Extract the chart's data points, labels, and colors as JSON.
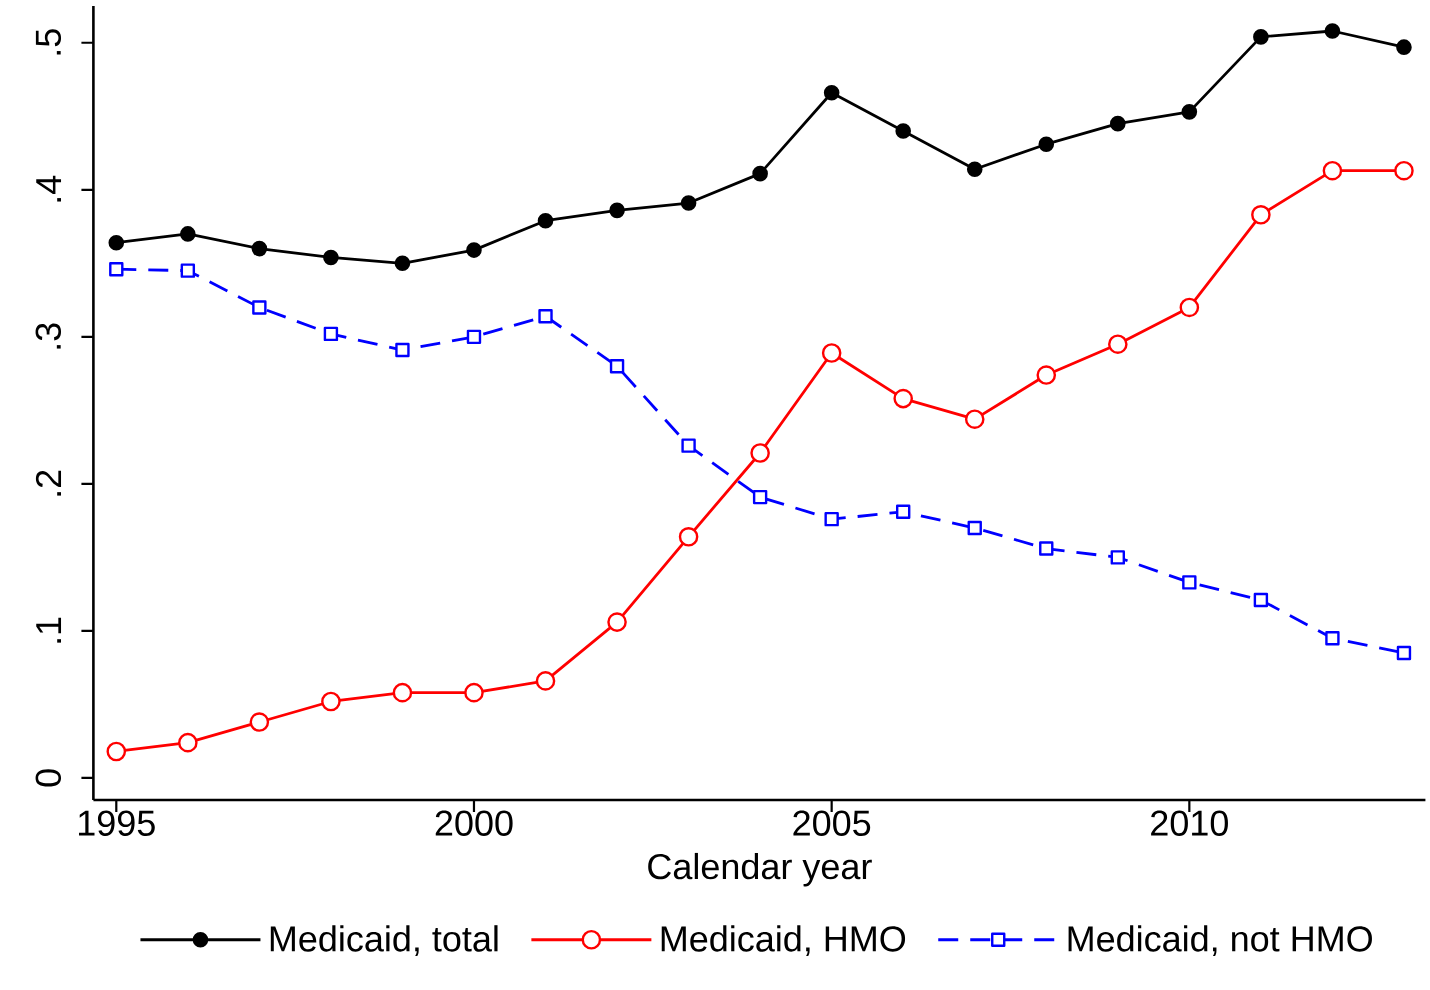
{
  "chart_data": {
    "type": "line",
    "xlabel": "Calendar year",
    "x": [
      1995,
      1996,
      1997,
      1998,
      1999,
      2000,
      2001,
      2002,
      2003,
      2004,
      2005,
      2006,
      2007,
      2008,
      2009,
      2010,
      2011,
      2012,
      2013
    ],
    "series": [
      {
        "name": "Medicaid, total",
        "color": "#000000",
        "marker": "circle",
        "line_style": "solid",
        "values": [
          0.364,
          0.37,
          0.36,
          0.354,
          0.35,
          0.359,
          0.379,
          0.386,
          0.391,
          0.411,
          0.466,
          0.44,
          0.414,
          0.431,
          0.445,
          0.453,
          0.504,
          0.508,
          0.497
        ]
      },
      {
        "name": "Medicaid, HMO",
        "color": "#ff0000",
        "marker": "circle",
        "line_style": "solid",
        "values": [
          0.018,
          0.024,
          0.038,
          0.052,
          0.058,
          0.058,
          0.066,
          0.106,
          0.164,
          0.221,
          0.289,
          0.258,
          0.244,
          0.274,
          0.295,
          0.32,
          0.383,
          0.413,
          0.413
        ]
      },
      {
        "name": "Medicaid, not HMO",
        "color": "#0000ff",
        "marker": "square",
        "line_style": "dashed",
        "values": [
          0.346,
          0.345,
          0.32,
          0.302,
          0.291,
          0.3,
          0.314,
          0.28,
          0.226,
          0.191,
          0.176,
          0.181,
          0.17,
          0.156,
          0.15,
          0.133,
          0.121,
          0.095,
          0.085
        ]
      }
    ],
    "xlim": [
      1994.68,
      2013.3
    ],
    "ylim": [
      -0.015,
      0.525
    ],
    "xticks": [
      1995,
      2000,
      2005,
      2010
    ],
    "yticks": [
      0,
      {
        "value": 0.1,
        "label": ".1"
      },
      {
        "value": 0.2,
        "label": ".2"
      },
      {
        "value": 0.3,
        "label": ".3"
      },
      {
        "value": 0.4,
        "label": ".4"
      },
      {
        "value": 0.5,
        "label": ".5"
      }
    ],
    "grid": false,
    "legend": "bottom"
  }
}
